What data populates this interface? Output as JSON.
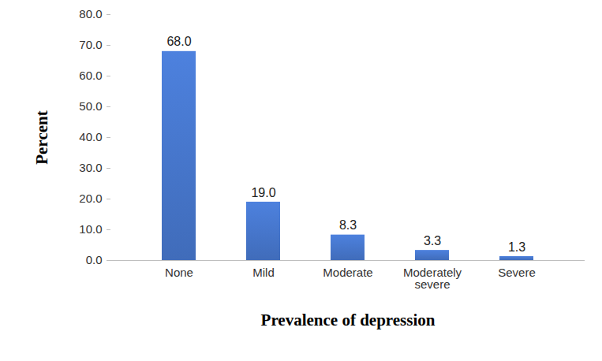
{
  "chart_data": {
    "type": "bar",
    "x_label": "Prevalence of depression",
    "y_label": "Percent",
    "categories": [
      "None",
      "Mild",
      "Moderate",
      "Moderately severe",
      "Severe"
    ],
    "values": [
      68.0,
      19.0,
      8.3,
      3.3,
      1.3
    ],
    "value_labels": [
      "68.0",
      "19.0",
      "8.3",
      "3.3",
      "1.3"
    ],
    "data_labels": true,
    "color": "#4472c4",
    "ylim": [
      0,
      80
    ],
    "yticks": [
      {
        "value": 0,
        "label": "0.0"
      },
      {
        "value": 10,
        "label": "10.0"
      },
      {
        "value": 20,
        "label": "20.0"
      },
      {
        "value": 30,
        "label": "30.0"
      },
      {
        "value": 40,
        "label": "40.0"
      },
      {
        "value": 50,
        "label": "50.0"
      },
      {
        "value": 60,
        "label": "60.0"
      },
      {
        "value": 70,
        "label": "70.0"
      },
      {
        "value": 80,
        "label": "80.0"
      }
    ],
    "grid": false
  }
}
